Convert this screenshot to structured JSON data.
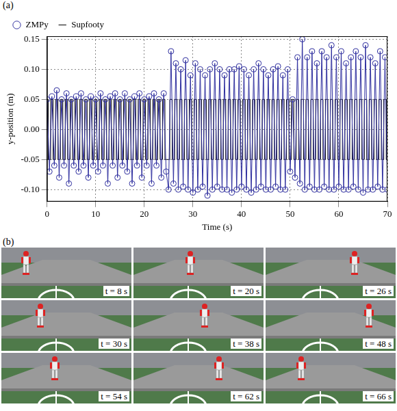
{
  "chart_data": {
    "type": "line",
    "x_label": "Time (s)",
    "y_label": "y-position (m)",
    "x": [
      0,
      0.5,
      1,
      1.5,
      2,
      2.5,
      3,
      3.5,
      4,
      4.5,
      5,
      5.5,
      6,
      6.5,
      7,
      7.5,
      8,
      8.5,
      9,
      9.5,
      10,
      10.5,
      11,
      11.5,
      12,
      12.5,
      13,
      13.5,
      14,
      14.5,
      15,
      15.5,
      16,
      16.5,
      17,
      17.5,
      18,
      18.5,
      19,
      19.5,
      20,
      20.5,
      21,
      21.5,
      22,
      22.5,
      23,
      23.5,
      24,
      24.5,
      25,
      25.5,
      26,
      26.5,
      27,
      27.5,
      28,
      28.5,
      29,
      29.5,
      30,
      30.5,
      31,
      31.5,
      32,
      32.5,
      33,
      33.5,
      34,
      34.5,
      35,
      35.5,
      36,
      36.5,
      37,
      37.5,
      38,
      38.5,
      39,
      39.5,
      40,
      40.5,
      41,
      41.5,
      42,
      42.5,
      43,
      43.5,
      44,
      44.5,
      45,
      45.5,
      46,
      46.5,
      47,
      47.5,
      48,
      48.5,
      49,
      49.5,
      50,
      50.5,
      51,
      51.5,
      52,
      52.5,
      53,
      53.5,
      54,
      54.5,
      55,
      55.5,
      56,
      56.5,
      57,
      57.5,
      58,
      58.5,
      59,
      59.5,
      60,
      60.5,
      61,
      61.5,
      62,
      62.5,
      63,
      63.5,
      64,
      64.5,
      65,
      65.5,
      66,
      66.5,
      67,
      67.5,
      68,
      68.5,
      69,
      69.5,
      70
    ],
    "series": [
      {
        "name": "ZMPy",
        "color": "#2e2e9e",
        "type": "line",
        "marker": "circle",
        "values": [
          0.05,
          -0.07,
          0.055,
          -0.06,
          0.065,
          -0.08,
          0.05,
          -0.06,
          0.06,
          -0.09,
          0.05,
          -0.06,
          0.055,
          -0.07,
          0.06,
          -0.06,
          0.05,
          -0.08,
          0.055,
          -0.06,
          0.05,
          -0.07,
          0.06,
          -0.06,
          0.05,
          -0.09,
          0.055,
          -0.06,
          0.06,
          -0.08,
          0.05,
          -0.06,
          0.06,
          -0.07,
          0.05,
          -0.09,
          0.055,
          -0.06,
          0.06,
          -0.08,
          0.05,
          -0.06,
          0.055,
          -0.09,
          0.06,
          -0.06,
          0.05,
          -0.08,
          0.06,
          -0.07,
          -0.1,
          0.13,
          -0.09,
          0.11,
          -0.1,
          0.1,
          -0.095,
          0.115,
          -0.1,
          0.09,
          -0.105,
          0.11,
          -0.1,
          0.1,
          -0.095,
          0.09,
          -0.11,
          0.1,
          -0.1,
          0.11,
          -0.095,
          0.1,
          -0.1,
          0.09,
          -0.1,
          0.1,
          -0.105,
          0.1,
          -0.1,
          0.105,
          -0.095,
          0.1,
          -0.1,
          0.09,
          -0.105,
          0.1,
          -0.1,
          0.11,
          -0.095,
          0.1,
          -0.1,
          0.09,
          -0.1,
          0.1,
          -0.095,
          0.105,
          -0.1,
          0.09,
          -0.1,
          0.1,
          -0.07,
          0.05,
          -0.08,
          0.12,
          -0.09,
          0.15,
          -0.1,
          0.12,
          -0.095,
          0.13,
          -0.1,
          0.11,
          -0.1,
          0.13,
          -0.095,
          0.12,
          -0.1,
          0.14,
          -0.1,
          0.12,
          -0.095,
          0.13,
          -0.1,
          0.11,
          -0.1,
          0.12,
          -0.095,
          0.13,
          -0.1,
          0.12,
          -0.105,
          0.14,
          -0.1,
          0.12,
          -0.1,
          0.11,
          -0.095,
          0.13,
          -0.1,
          0.12,
          -0.1
        ]
      },
      {
        "name": "Supfooty",
        "color": "#000000",
        "type": "step",
        "marker": "none",
        "values": [
          0.05,
          -0.05,
          0.05,
          -0.05,
          0.05,
          -0.05,
          0.05,
          -0.05,
          0.05,
          -0.05,
          0.05,
          -0.05,
          0.05,
          -0.05,
          0.05,
          -0.05,
          0.05,
          -0.05,
          0.05,
          -0.05,
          0.05,
          -0.05,
          0.05,
          -0.05,
          0.05,
          -0.05,
          0.05,
          -0.05,
          0.05,
          -0.05,
          0.05,
          -0.05,
          0.05,
          -0.05,
          0.05,
          -0.05,
          0.05,
          -0.05,
          0.05,
          -0.05,
          0.05,
          -0.05,
          0.05,
          -0.05,
          0.05,
          -0.05,
          0.05,
          -0.05,
          0.05,
          -0.05,
          -0.05,
          0.05,
          -0.05,
          0.05,
          -0.05,
          0.05,
          -0.05,
          0.05,
          -0.05,
          0.05,
          -0.05,
          0.05,
          -0.05,
          0.05,
          -0.05,
          0.05,
          -0.05,
          0.05,
          -0.05,
          0.05,
          -0.05,
          0.05,
          -0.05,
          0.05,
          -0.05,
          0.05,
          -0.05,
          0.05,
          -0.05,
          0.05,
          -0.05,
          0.05,
          -0.05,
          0.05,
          -0.05,
          0.05,
          -0.05,
          0.05,
          -0.05,
          0.05,
          -0.05,
          0.05,
          -0.05,
          0.05,
          -0.05,
          0.05,
          -0.05,
          0.05,
          -0.05,
          0.05,
          -0.05,
          0.05,
          -0.05,
          0.05,
          -0.05,
          0.05,
          -0.05,
          0.05,
          -0.05,
          0.05,
          -0.05,
          0.05,
          -0.05,
          0.05,
          -0.05,
          0.05,
          -0.05,
          0.05,
          -0.05,
          0.05,
          -0.05,
          0.05,
          -0.05,
          0.05,
          -0.05,
          0.05,
          -0.05,
          0.05,
          -0.05,
          0.05,
          -0.05,
          0.05,
          -0.05,
          0.05,
          -0.05,
          0.05,
          -0.05,
          0.05,
          -0.05,
          0.05,
          -0.05
        ]
      }
    ],
    "xlim": [
      0,
      70
    ],
    "xticks": [
      0,
      10,
      20,
      30,
      40,
      50,
      60,
      70
    ],
    "ylim": [
      -0.12,
      0.155
    ],
    "yticks": [
      {
        "value": -0.1,
        "label": "-0.10"
      },
      {
        "value": -0.05,
        "label": "-0.05"
      },
      {
        "value": 0,
        "label": "0.00"
      },
      {
        "value": 0.05,
        "label": "0.05"
      },
      {
        "value": 0.1,
        "label": "0.10"
      },
      {
        "value": 0.15,
        "label": "0.15"
      }
    ],
    "grid": true,
    "legend": "top"
  },
  "panel_labels": [
    "(a)",
    "(b)"
  ],
  "snapshots": [
    "t = 8 s",
    "t = 20 s",
    "t = 26 s",
    "t = 30 s",
    "t = 38 s",
    "t = 48 s",
    "t = 54 s",
    "t = 62 s",
    "t = 66 s"
  ]
}
